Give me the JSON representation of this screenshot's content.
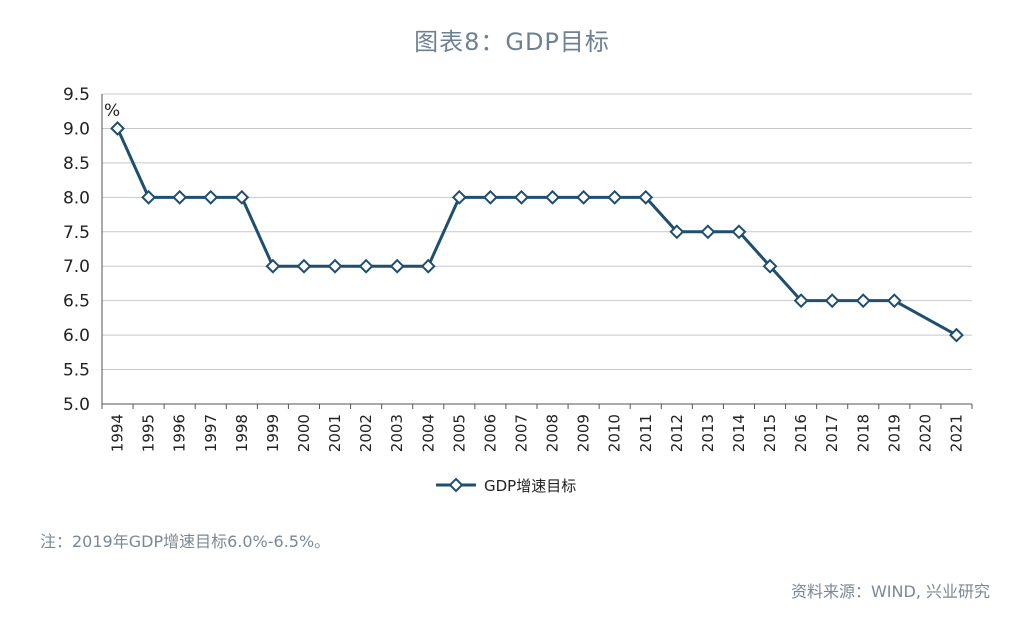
{
  "chart_data": {
    "type": "line",
    "title": "图表8：GDP目标",
    "unit_label": "%",
    "x": [
      "1994",
      "1995",
      "1996",
      "1997",
      "1998",
      "1999",
      "2000",
      "2001",
      "2002",
      "2003",
      "2004",
      "2005",
      "2006",
      "2007",
      "2008",
      "2009",
      "2010",
      "2011",
      "2012",
      "2013",
      "2014",
      "2015",
      "2016",
      "2017",
      "2018",
      "2019",
      "2020",
      "2021"
    ],
    "series": [
      {
        "name": "GDP增速目标",
        "color": "#1f4e6e",
        "values": [
          9.0,
          8.0,
          8.0,
          8.0,
          8.0,
          7.0,
          7.0,
          7.0,
          7.0,
          7.0,
          7.0,
          8.0,
          8.0,
          8.0,
          8.0,
          8.0,
          8.0,
          8.0,
          7.5,
          7.5,
          7.5,
          7.0,
          6.5,
          6.5,
          6.5,
          6.5,
          null,
          6.0
        ]
      }
    ],
    "ylim": [
      5.0,
      9.5
    ],
    "yticks": [
      "5.0",
      "5.5",
      "6.0",
      "6.5",
      "7.0",
      "7.5",
      "8.0",
      "8.5",
      "9.0",
      "9.5"
    ],
    "grid": true,
    "legend": "bottom"
  },
  "note": "注：2019年GDP增速目标6.0%-6.5%。",
  "source": "资料来源：WIND, 兴业研究"
}
